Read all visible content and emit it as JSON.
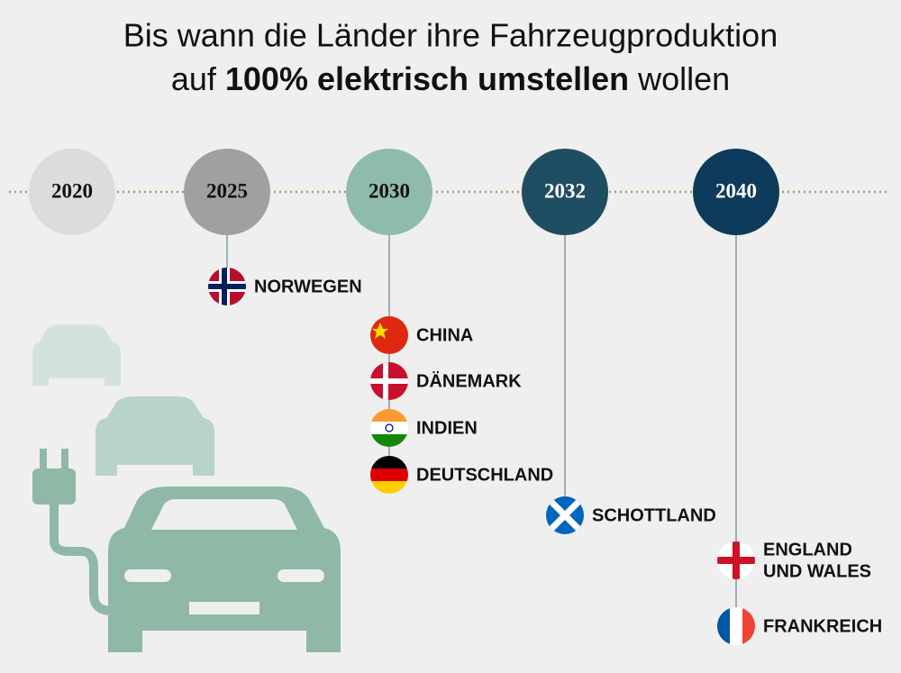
{
  "title": {
    "line1": "Bis wann die Länder ihre Fahrzeugproduktion",
    "line2_pre": "auf",
    "line2_bold": "100% elektrisch umstellen",
    "line2_post": "wollen"
  },
  "milestones": [
    {
      "year": "2020",
      "countries": []
    },
    {
      "year": "2025",
      "countries": [
        {
          "lines": [
            "NORWEGEN"
          ]
        }
      ]
    },
    {
      "year": "2030",
      "countries": [
        {
          "lines": [
            "CHINA"
          ]
        },
        {
          "lines": [
            "DÄNEMARK"
          ]
        },
        {
          "lines": [
            "INDIEN"
          ]
        },
        {
          "lines": [
            "DEUTSCHLAND"
          ]
        }
      ]
    },
    {
      "year": "2032",
      "countries": [
        {
          "lines": [
            "SCHOTTLAND"
          ]
        }
      ]
    },
    {
      "year": "2040",
      "countries": [
        {
          "lines": [
            "ENGLAND",
            "UND WALES"
          ]
        },
        {
          "lines": [
            "FRANKREICH"
          ]
        }
      ]
    }
  ]
}
